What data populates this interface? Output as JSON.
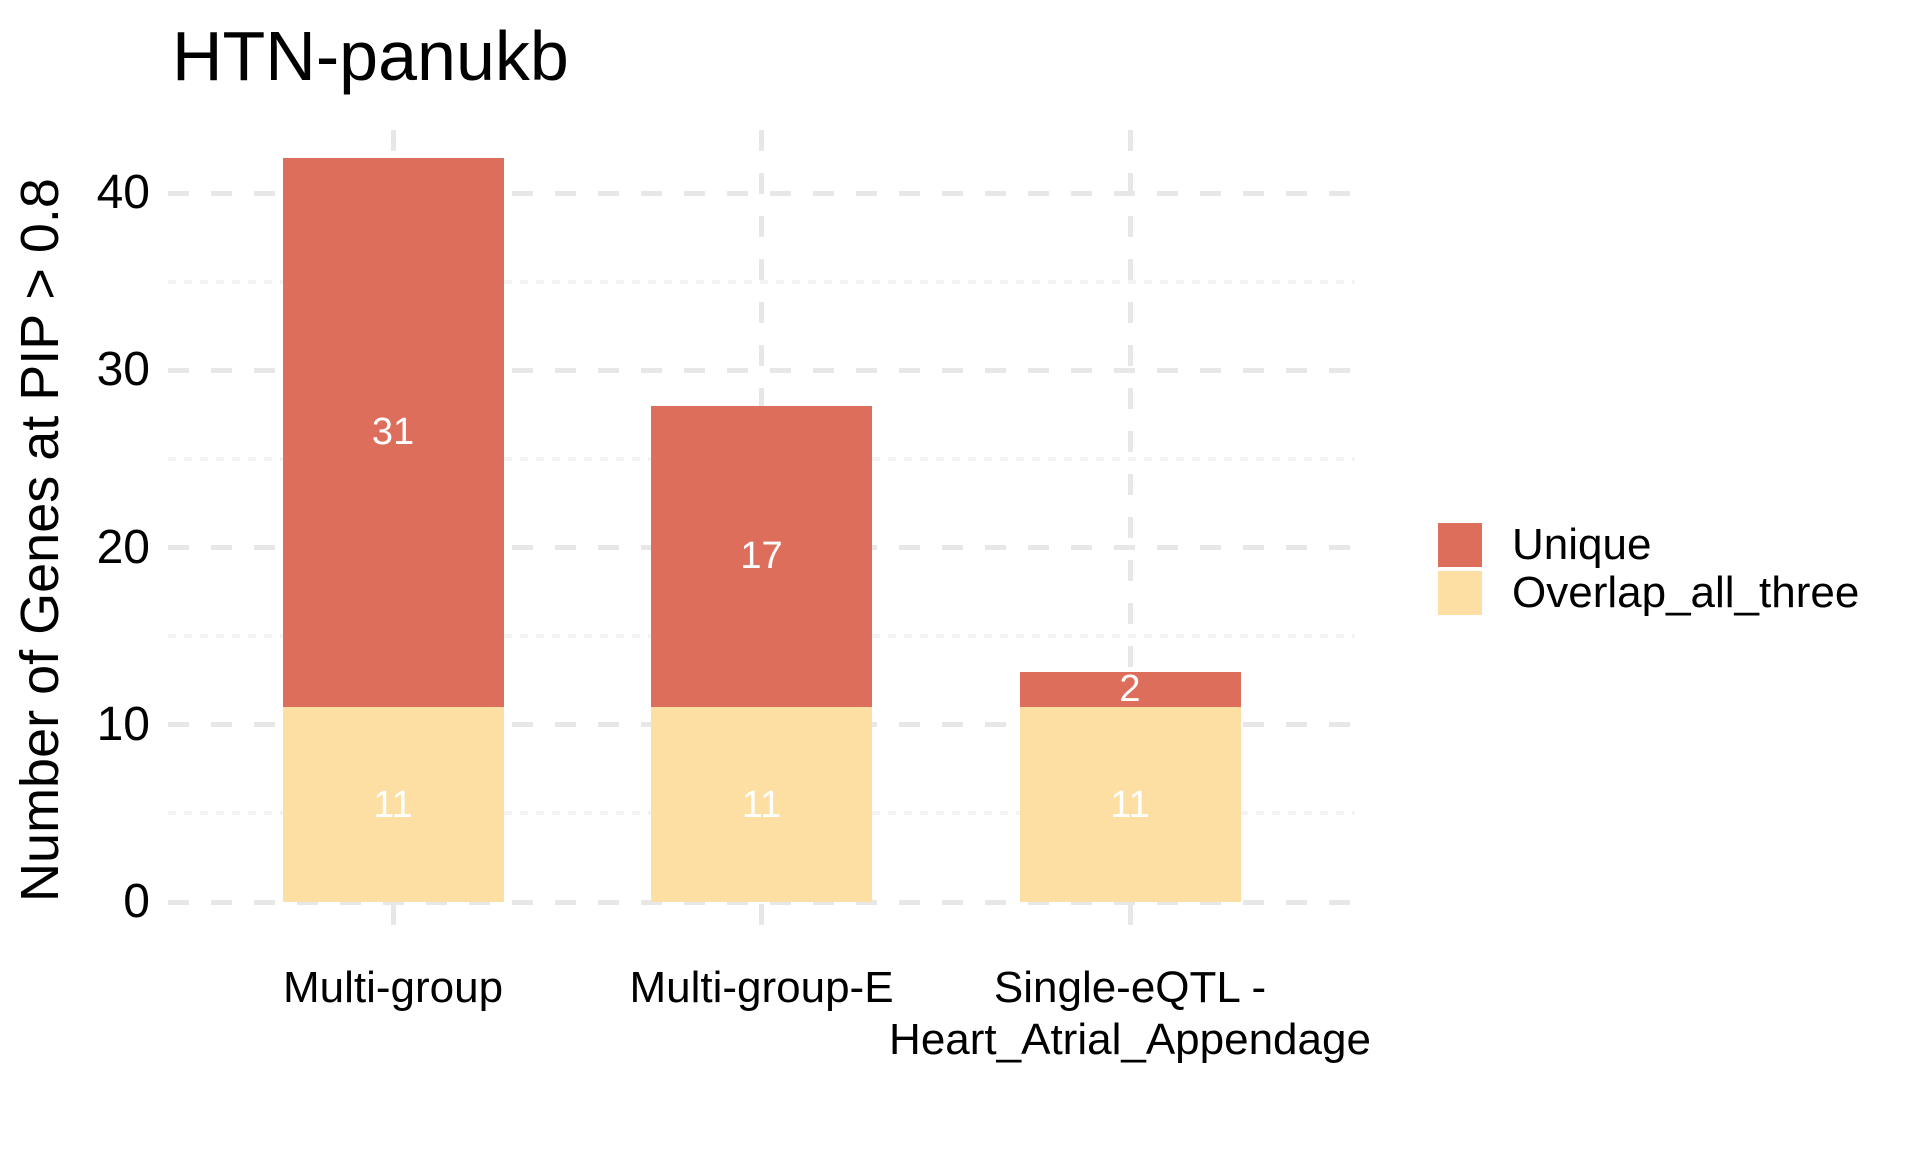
{
  "chart_data": {
    "type": "bar",
    "stacked": true,
    "title": "HTN-panukb",
    "xlabel": "",
    "ylabel": "Number of Genes at PIP > 0.8",
    "categories": [
      "Multi-group",
      "Multi-group-E",
      "Single-eQTL -\nHeart_Atrial_Appendage"
    ],
    "series": [
      {
        "name": "Overlap_all_three",
        "color": "#FDDFA3",
        "values": [
          11,
          11,
          11
        ]
      },
      {
        "name": "Unique",
        "color": "#DD6E5C",
        "values": [
          31,
          17,
          2
        ]
      }
    ],
    "totals": [
      42,
      28,
      13
    ],
    "y_ticks": [
      0,
      10,
      20,
      30,
      40
    ],
    "y_minor_ticks": [
      5,
      15,
      25,
      35
    ],
    "ylim": [
      0,
      42
    ],
    "grid": "dashed",
    "legend_position": "right",
    "bar_label_color": "#FFFFFF"
  },
  "legend": {
    "items": [
      {
        "label": "Unique",
        "color": "#DD6E5C"
      },
      {
        "label": "Overlap_all_three",
        "color": "#FDDFA3"
      }
    ]
  }
}
